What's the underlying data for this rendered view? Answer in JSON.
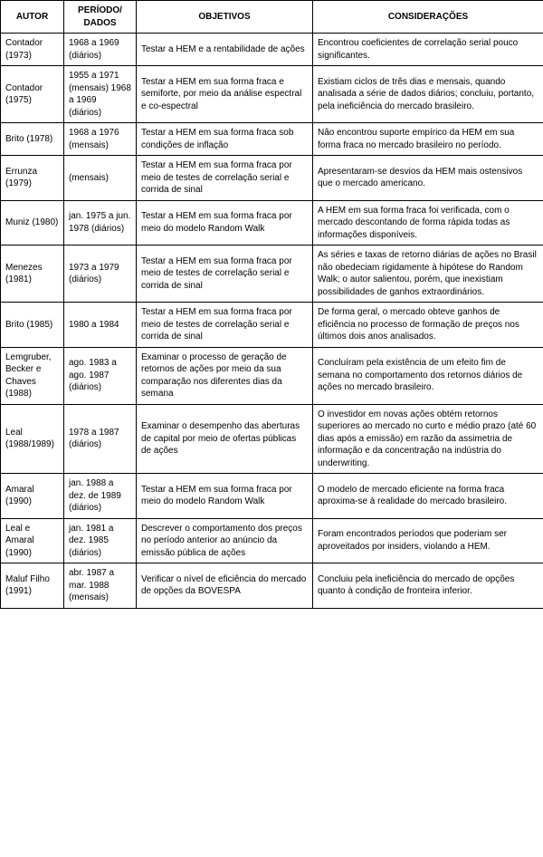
{
  "headers": {
    "autor": "AUTOR",
    "periodo": "PERÍODO/ DADOS",
    "objetivos": "OBJETIVOS",
    "consideracoes": "CONSIDERAÇÕES"
  },
  "rows": [
    {
      "autor": "Contador (1973)",
      "periodo": "1968 a 1969 (diários)",
      "objetivos": "Testar a HEM e a rentabilidade de ações",
      "consideracoes": "Encontrou coeficientes de correlação serial pouco significantes."
    },
    {
      "autor": "Contador (1975)",
      "periodo": "1955 a 1971 (mensais) 1968 a 1969 (diários)",
      "objetivos": "Testar a HEM em sua forma fraca e semiforte, por meio da análise espectral e co-espectral",
      "consideracoes": "Existiam ciclos de três dias e mensais, quando analisada a série de dados diários; concluiu, portanto, pela ineficiência do mercado brasileiro."
    },
    {
      "autor": "Brito (1978)",
      "periodo": "1968 a 1976 (mensais)",
      "objetivos": "Testar a HEM em sua forma fraca sob condições de inflação",
      "consideracoes": "Não encontrou suporte empírico da HEM em sua forma fraca no mercado brasileiro no período."
    },
    {
      "autor": "Errunza (1979)",
      "periodo": "(mensais)",
      "objetivos": "Testar a HEM em sua forma fraca por meio de testes de correlação serial e corrida de sinal",
      "consideracoes": "Apresentaram-se desvios da HEM mais ostensivos que o mercado americano."
    },
    {
      "autor": "Muniz (1980)",
      "periodo": "jan. 1975 a jun. 1978 (diários)",
      "objetivos": "Testar a HEM em sua forma fraca por meio do modelo Random Walk",
      "consideracoes": "A HEM em sua forma fraca foi verificada, com o mercado descontando de forma rápida todas as informações disponíveis."
    },
    {
      "autor": "Menezes (1981)",
      "periodo": "1973 a 1979 (diários)",
      "objetivos": "Testar a HEM em sua forma fraca por meio de testes de correlação serial e corrida de sinal",
      "consideracoes": "As séries e taxas de retorno diárias de ações no Brasil não obedeciam rigidamente à hipótese do Random Walk; o autor salientou, porém, que inexistiam possibilidades de ganhos extraordinários."
    },
    {
      "autor": "Brito (1985)",
      "periodo": "1980 a 1984",
      "objetivos": "Testar a HEM em sua forma fraca por meio de testes de correlação serial e corrida de sinal",
      "consideracoes": "De forma geral, o mercado obteve ganhos de eficiência no processo de formação de preços nos últimos dois anos analisados."
    },
    {
      "autor": "Lemgruber, Becker e Chaves (1988)",
      "periodo": "ago. 1983 a ago. 1987 (diários)",
      "objetivos": "Examinar o processo de geração de retornos de ações por meio da sua comparação nos diferentes dias da semana",
      "consideracoes": "Concluíram pela existência de um efeito fim de semana no comportamento dos retornos diários de ações no mercado brasileiro."
    },
    {
      "autor": "Leal (1988/1989)",
      "periodo": "1978 a 1987 (diários)",
      "objetivos": "Examinar o desempenho das aberturas de capital por meio de ofertas públicas de ações",
      "consideracoes": "O investidor em novas ações obtém retornos superiores ao mercado no curto e médio prazo (até 60 dias após a emissão) em razão da assimetria de informação e da concentração na indústria do underwriting."
    },
    {
      "autor": "Amaral (1990)",
      "periodo": "jan. 1988 a dez. de 1989 (diários)",
      "objetivos": "Testar a HEM em sua forma fraca por meio do modelo Random Walk",
      "consideracoes": "O modelo de mercado eficiente na forma fraca aproxima-se à realidade do mercado brasileiro."
    },
    {
      "autor": "Leal e Amaral (1990)",
      "periodo": "jan. 1981 a dez. 1985 (diários)",
      "objetivos": "Descrever o comportamento dos preços no período anterior ao anúncio da emissão pública de ações",
      "consideracoes": "Foram encontrados períodos que poderiam ser aproveitados por insiders, violando a HEM."
    },
    {
      "autor": "Maluf Filho (1991)",
      "periodo": "abr. 1987 a mar. 1988 (mensais)",
      "objetivos": "Verificar o nível de eficiência do mercado de opções da BOVESPA",
      "consideracoes": "Concluiu pela ineficiência do mercado de opções quanto à condição de fronteira inferior."
    }
  ]
}
